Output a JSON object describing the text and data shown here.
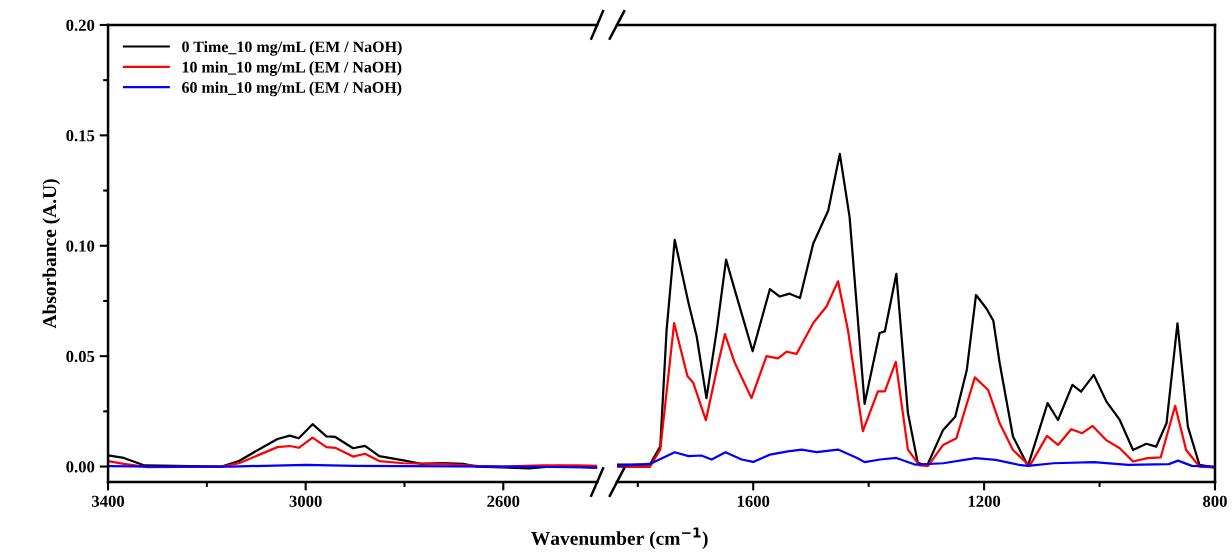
{
  "chart_data": [
    {
      "type": "line",
      "xlabel": "Wavenumber (cm$^{−1}$)",
      "ylabel": "Absorbance (A.U)",
      "xlim": [
        3400,
        2410
      ],
      "ylim": [
        -0.007,
        0.2
      ],
      "xticks": [
        3400,
        {
          "value": 3200,
          "label": null
        },
        3000,
        {
          "value": 2800,
          "label": null
        },
        2600
      ],
      "yticks": [
        {
          "value": 0,
          "label": "0.00"
        },
        {
          "value": 0.025,
          "label": null
        },
        {
          "value": 0.05,
          "label": "0.05"
        },
        {
          "value": 0.075,
          "label": null
        },
        {
          "value": 0.1,
          "label": "0.10"
        },
        {
          "value": 0.125,
          "label": null
        },
        {
          "value": 0.15,
          "label": "0.15"
        },
        {
          "value": 0.175,
          "label": null
        },
        {
          "value": 0.2,
          "label": "0.20"
        }
      ],
      "legend": "top left",
      "grid": false,
      "marker": "none",
      "line_style": "solid",
      "series": [
        {
          "name": "0 Time_10 mg/mL (EM / NaOH)",
          "color": "#000000",
          "x": [
            3400,
            3368,
            3326,
            3170,
            3135,
            3085,
            3057,
            3032,
            3014,
            2986,
            2958,
            2940,
            2904,
            2880,
            2851,
            2802,
            2766,
            2724,
            2681,
            2653,
            2547,
            2490,
            2410
          ],
          "values": [
            0.0051,
            0.0039,
            0.0005,
            0,
            0.0025,
            0.009,
            0.0125,
            0.014,
            0.0128,
            0.0192,
            0.0137,
            0.0134,
            0.0083,
            0.0094,
            0.0047,
            0.0028,
            0.0012,
            0.0016,
            0.0012,
            0,
            -0.0008,
            0.0003,
            -0.0005
          ]
        },
        {
          "name": "10 min_10 mg/mL (EM / NaOH)",
          "color": "#ff0000",
          "x": [
            3400,
            3368,
            3320,
            3170,
            3135,
            3085,
            3057,
            3032,
            3014,
            2986,
            2958,
            2940,
            2904,
            2880,
            2851,
            2802,
            2724,
            2653,
            2600,
            2520,
            2450,
            2410
          ],
          "values": [
            0.0025,
            0.0012,
            -0.0003,
            0,
            0.0015,
            0.0062,
            0.0088,
            0.0093,
            0.0085,
            0.0131,
            0.0088,
            0.0085,
            0.0045,
            0.0058,
            0.0025,
            0.0015,
            0.0012,
            0.0003,
            0,
            0.0005,
            0.0005,
            0.0003
          ]
        },
        {
          "name": "60 min_10 mg/mL (EM / NaOH)",
          "color": "#0000ff",
          "x": [
            3400,
            3300,
            3150,
            3000,
            2900,
            2800,
            2600,
            2500,
            2410
          ],
          "values": [
            0.0002,
            0,
            0,
            0.0008,
            0.0003,
            0.0002,
            0,
            -0.0002,
            -0.0005
          ]
        }
      ]
    },
    {
      "type": "line",
      "xlim": [
        1836,
        800
      ],
      "ylim": [
        -0.007,
        0.2
      ],
      "tick_labels": "x",
      "xticks": [
        {
          "value": 1800,
          "label": null
        },
        1600,
        {
          "value": 1400,
          "label": null
        },
        1200,
        {
          "value": 1000,
          "label": null
        },
        800
      ],
      "grid": false,
      "marker": "none",
      "line_style": "solid",
      "series": [
        {
          "color": "#000000",
          "x": [
            1836,
            1779,
            1761,
            1750,
            1736,
            1712,
            1698,
            1681,
            1663,
            1647,
            1632,
            1601,
            1571,
            1554,
            1537,
            1519,
            1496,
            1470,
            1450,
            1433,
            1407,
            1381,
            1372,
            1352,
            1332,
            1315,
            1299,
            1271,
            1250,
            1230,
            1214,
            1196,
            1184,
            1173,
            1150,
            1124,
            1090,
            1072,
            1047,
            1032,
            1010,
            988,
            965,
            942,
            919,
            902,
            884,
            865,
            847,
            827,
            804
          ],
          "values": [
            0.0009,
            0.0009,
            0.0092,
            0.062,
            0.1027,
            0.074,
            0.059,
            0.031,
            0.062,
            0.0937,
            0.08,
            0.0522,
            0.0804,
            0.077,
            0.0783,
            0.0763,
            0.101,
            0.116,
            0.1416,
            0.113,
            0.0284,
            0.0605,
            0.0612,
            0.0873,
            0.0243,
            0.0017,
            0.0003,
            0.0166,
            0.0226,
            0.0437,
            0.0777,
            0.0716,
            0.066,
            0.0468,
            0.0136,
            0.0003,
            0.0287,
            0.0211,
            0.037,
            0.0339,
            0.0415,
            0.0294,
            0.0211,
            0.0075,
            0.0103,
            0.009,
            0.0196,
            0.0649,
            0.0181,
            0.0008,
            -0.0003
          ]
        },
        {
          "color": "#ff0000",
          "x": [
            1836,
            1779,
            1761,
            1737,
            1714,
            1704,
            1682,
            1663,
            1649,
            1632,
            1603,
            1577,
            1557,
            1542,
            1525,
            1496,
            1473,
            1453,
            1436,
            1410,
            1384,
            1372,
            1353,
            1332,
            1312,
            1297,
            1271,
            1248,
            1216,
            1193,
            1173,
            1150,
            1121,
            1091,
            1072,
            1049,
            1030,
            1012,
            989,
            965,
            942,
            917,
            894,
            869,
            850,
            827,
            804
          ],
          "values": [
            -0.0002,
            -0.0002,
            0.0077,
            0.065,
            0.041,
            0.038,
            0.021,
            0.044,
            0.06,
            0.047,
            0.031,
            0.05,
            0.049,
            0.052,
            0.051,
            0.065,
            0.0725,
            0.0839,
            0.062,
            0.016,
            0.034,
            0.034,
            0.0474,
            0.0077,
            0.0005,
            0.0003,
            0.0098,
            0.0128,
            0.0404,
            0.0347,
            0.0196,
            0.0075,
            0.0003,
            0.0139,
            0.0098,
            0.0169,
            0.0151,
            0.0184,
            0.0121,
            0.0083,
            0.0023,
            0.0038,
            0.0042,
            0.0275,
            0.0075,
            0,
            -0.0003
          ]
        },
        {
          "color": "#0000ff",
          "x": [
            1836,
            1779,
            1736,
            1712,
            1690,
            1672,
            1648,
            1620,
            1600,
            1571,
            1540,
            1516,
            1490,
            1453,
            1420,
            1407,
            1380,
            1352,
            1320,
            1271,
            1215,
            1180,
            1140,
            1124,
            1080,
            1010,
            950,
            880,
            864,
            840,
            800
          ],
          "values": [
            0.0003,
            0.0012,
            0.0065,
            0.0047,
            0.005,
            0.0032,
            0.0065,
            0.0032,
            0.0021,
            0.0054,
            0.0069,
            0.0077,
            0.0065,
            0.0077,
            0.0039,
            0.002,
            0.0032,
            0.0039,
            0.0009,
            0.0015,
            0.0038,
            0.003,
            0.0008,
            0.0003,
            0.0015,
            0.002,
            0.0008,
            0.0011,
            0.0027,
            0.0003,
            0
          ]
        }
      ]
    }
  ]
}
